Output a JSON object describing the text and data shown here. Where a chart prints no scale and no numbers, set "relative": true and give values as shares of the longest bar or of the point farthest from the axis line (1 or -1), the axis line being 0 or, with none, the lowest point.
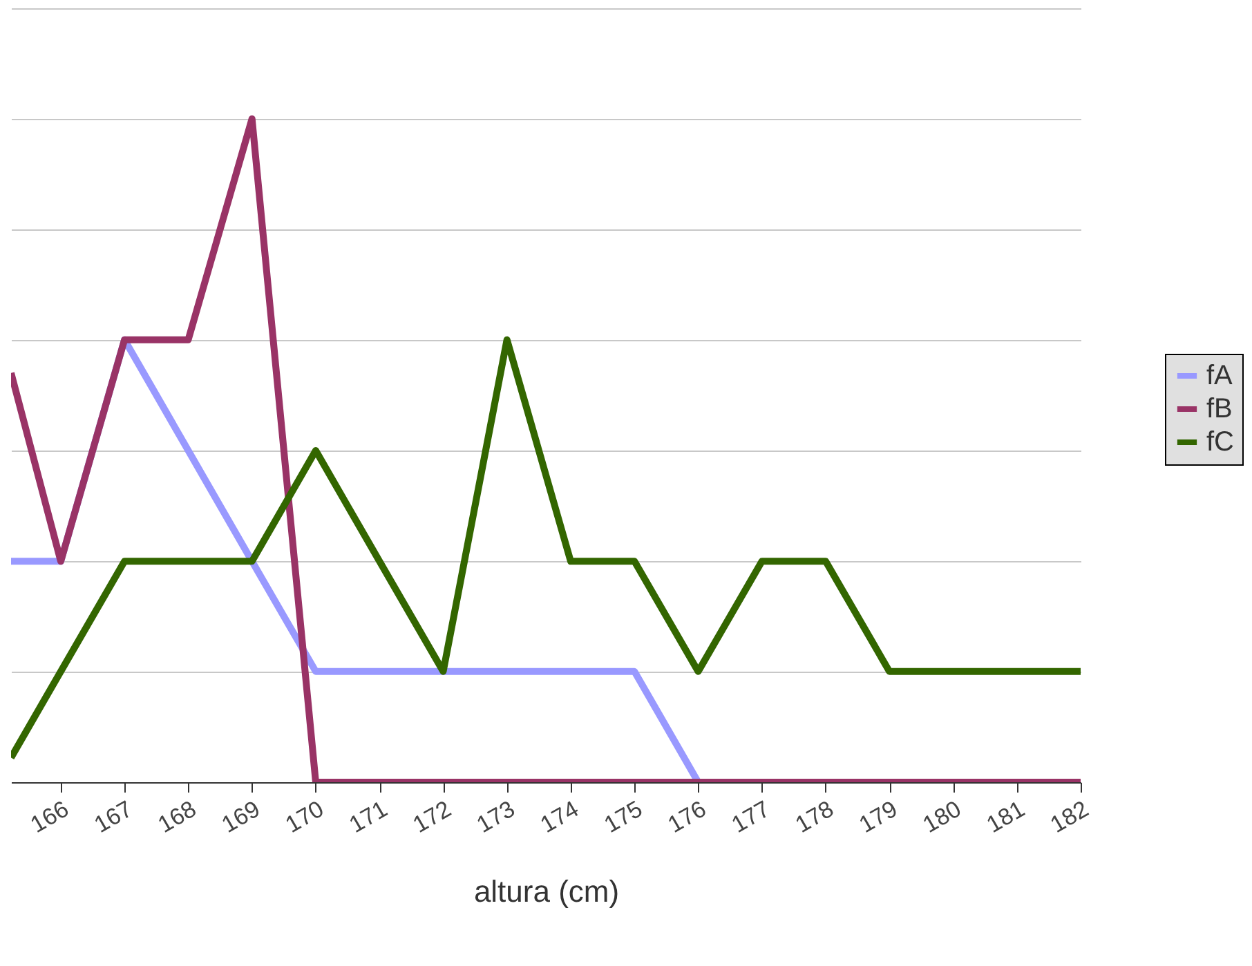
{
  "chart_data": {
    "type": "line",
    "xlabel": "altura (cm)",
    "relative": true,
    "grid": "y",
    "legend": "right",
    "marker": "none",
    "line_style": "solid",
    "xlim": [
      165.22,
      182
    ],
    "xticks": [
      166,
      167,
      168,
      169,
      170,
      171,
      172,
      173,
      174,
      175,
      176,
      177,
      178,
      179,
      180,
      181,
      182
    ],
    "x": [
      165.22,
      166,
      167,
      168,
      169,
      170,
      171,
      172,
      173,
      174,
      175,
      176,
      177,
      178,
      179,
      180,
      181,
      182
    ],
    "series": [
      {
        "name": "fA",
        "color": "#9999ff",
        "values": [
          0.333,
          0.333,
          0.667,
          0.5,
          0.333,
          0.167,
          0.167,
          0.167,
          0.167,
          0.167,
          0.167,
          0,
          null,
          null,
          null,
          null,
          null,
          null
        ]
      },
      {
        "name": "fB",
        "color": "#993366",
        "values": [
          0.617,
          0.333,
          0.667,
          0.667,
          1,
          0,
          0,
          0,
          0,
          0,
          0,
          0,
          0,
          0,
          0,
          0,
          0,
          0
        ]
      },
      {
        "name": "fC",
        "color": "#336600",
        "values": [
          0.037,
          0.167,
          0.333,
          0.333,
          0.333,
          0.5,
          0.333,
          0.167,
          0.667,
          0.333,
          0.333,
          0.167,
          0.333,
          0.333,
          0.167,
          0.167,
          0.167,
          0.167
        ]
      }
    ]
  }
}
